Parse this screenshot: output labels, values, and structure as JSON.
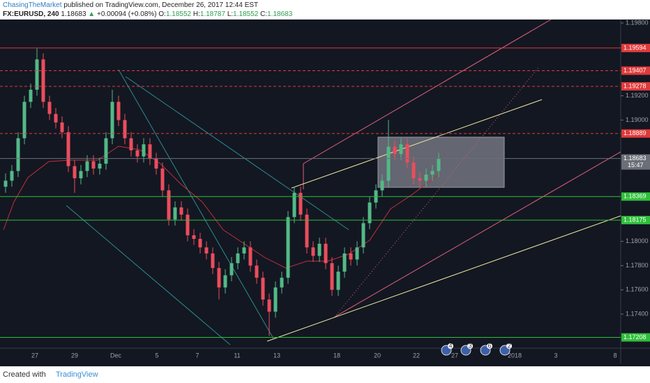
{
  "header": {
    "author": "ChasingTheMarket",
    "published": "published on TradingView.com, December 26, 2017 12:44 EST",
    "symbol": "FX:EURUSD, 240",
    "last": "1.18683",
    "arrow": "▲",
    "change": "+0.00094 (+0.08%)",
    "open_label": "O:",
    "open": "1.18552",
    "high_label": "H:",
    "high": "1.18787",
    "low_label": "L:",
    "low": "1.18552",
    "close_label": "C:",
    "close": "1.18683"
  },
  "chart_data": {
    "type": "candlestick",
    "up_color": "#53b987",
    "down_color": "#eb4d5c",
    "ylim": [
      1.17119,
      1.19829
    ],
    "yticks": [
      {
        "value": 1.198,
        "label": "1.19800"
      },
      {
        "value": 1.192,
        "label": "1.19200"
      },
      {
        "value": 1.19,
        "label": "1.19000"
      },
      {
        "value": 1.18,
        "label": "1.18000"
      },
      {
        "value": 1.178,
        "label": "1.17800"
      },
      {
        "value": 1.176,
        "label": "1.17600"
      },
      {
        "value": 1.174,
        "label": "1.17400"
      }
    ],
    "time_labels": [
      "27",
      "29",
      "Dec",
      "5",
      "7",
      "11",
      "13",
      "18",
      "20",
      "22",
      "27",
      "2018",
      "3",
      "8"
    ],
    "levels": [
      {
        "value": 1.19594,
        "color": "#e03a3a",
        "style": "solid"
      },
      {
        "value": 1.19407,
        "color": "#e03a3a",
        "style": "dashed"
      },
      {
        "value": 1.19278,
        "color": "#e03a3a",
        "style": "dashed"
      },
      {
        "value": 1.18889,
        "color": "#e03a3a",
        "style": "dashed"
      },
      {
        "value": 1.18683,
        "color": "#6b6f78",
        "style": "solid",
        "countdown": "15:47"
      },
      {
        "value": 1.18369,
        "color": "#2fbf3a",
        "style": "solid"
      },
      {
        "value": 1.18175,
        "color": "#2fbf3a",
        "style": "solid"
      },
      {
        "value": 1.17208,
        "color": "#2fbf3a",
        "style": "solid"
      }
    ],
    "events": [
      "4",
      "3",
      "6",
      "2"
    ],
    "open": [
      1.1845,
      1.185,
      1.1858,
      1.1885,
      1.1915,
      1.1925,
      1.195,
      1.1915,
      1.1905,
      1.1898,
      1.189,
      1.1862,
      1.1852,
      1.1858,
      1.1866,
      1.186,
      1.1864,
      1.1885,
      1.1915,
      1.19,
      1.1885,
      1.1875,
      1.187,
      1.188,
      1.1868,
      1.186,
      1.1842,
      1.1818,
      1.1828,
      1.1822,
      1.1805,
      1.1802,
      1.1795,
      1.179,
      1.1778,
      1.1762,
      1.1772,
      1.1782,
      1.179,
      1.1795,
      1.178,
      1.177,
      1.1752,
      1.1742,
      1.1762,
      1.177,
      1.182,
      1.184,
      1.1822,
      1.1795,
      1.1788,
      1.1798,
      1.1782,
      1.176,
      1.1775,
      1.179,
      1.1785,
      1.1795,
      1.1815,
      1.1832,
      1.1842,
      1.185,
      1.1878,
      1.1872,
      1.188,
      1.1865,
      1.1852,
      1.185,
      1.1855,
      1.1858
    ],
    "high": [
      1.1856,
      1.1863,
      1.189,
      1.192,
      1.193,
      1.1959,
      1.1955,
      1.192,
      1.191,
      1.1903,
      1.1895,
      1.1867,
      1.1863,
      1.1871,
      1.1871,
      1.1869,
      1.189,
      1.1925,
      1.192,
      1.1905,
      1.189,
      1.188,
      1.1885,
      1.1885,
      1.1873,
      1.1865,
      1.1847,
      1.1833,
      1.1833,
      1.1827,
      1.181,
      1.1807,
      1.18,
      1.1795,
      1.1783,
      1.1777,
      1.1787,
      1.1795,
      1.18,
      1.18,
      1.1785,
      1.1775,
      1.1757,
      1.1767,
      1.1775,
      1.1825,
      1.1845,
      1.1845,
      1.1827,
      1.18,
      1.1803,
      1.1803,
      1.1787,
      1.178,
      1.1795,
      1.1795,
      1.18,
      1.182,
      1.1837,
      1.1847,
      1.1855,
      1.19,
      1.1883,
      1.1885,
      1.1885,
      1.187,
      1.1857,
      1.186,
      1.1863,
      1.1873
    ],
    "low": [
      1.184,
      1.1845,
      1.1853,
      1.188,
      1.191,
      1.192,
      1.191,
      1.19,
      1.1893,
      1.1885,
      1.1857,
      1.184,
      1.1847,
      1.1853,
      1.1855,
      1.1855,
      1.1859,
      1.188,
      1.1895,
      1.188,
      1.187,
      1.1865,
      1.1865,
      1.1863,
      1.1855,
      1.1837,
      1.1813,
      1.1813,
      1.1817,
      1.18,
      1.1797,
      1.179,
      1.1785,
      1.1773,
      1.1752,
      1.1757,
      1.1767,
      1.1777,
      1.1785,
      1.1775,
      1.1765,
      1.1747,
      1.1722,
      1.1737,
      1.1757,
      1.1765,
      1.1815,
      1.1817,
      1.179,
      1.1783,
      1.1783,
      1.1777,
      1.1755,
      1.1755,
      1.177,
      1.178,
      1.178,
      1.179,
      1.181,
      1.1827,
      1.1837,
      1.1845,
      1.1867,
      1.1867,
      1.186,
      1.1847,
      1.1845,
      1.1845,
      1.185,
      1.1853
    ],
    "close": [
      1.185,
      1.1858,
      1.1885,
      1.1915,
      1.1925,
      1.195,
      1.1915,
      1.1905,
      1.1898,
      1.189,
      1.1862,
      1.1852,
      1.1858,
      1.1866,
      1.186,
      1.1864,
      1.1885,
      1.1915,
      1.19,
      1.1885,
      1.1875,
      1.187,
      1.188,
      1.1868,
      1.186,
      1.1842,
      1.1818,
      1.1828,
      1.1822,
      1.1805,
      1.1802,
      1.1795,
      1.179,
      1.1778,
      1.1762,
      1.1772,
      1.1782,
      1.179,
      1.1795,
      1.178,
      1.177,
      1.1752,
      1.1742,
      1.1762,
      1.177,
      1.182,
      1.184,
      1.1822,
      1.1795,
      1.1788,
      1.1798,
      1.1782,
      1.176,
      1.1775,
      1.179,
      1.1785,
      1.1795,
      1.1815,
      1.1832,
      1.1842,
      1.185,
      1.1878,
      1.1872,
      1.188,
      1.1865,
      1.1852,
      1.185,
      1.1855,
      1.1858,
      1.1868
    ]
  },
  "footer": {
    "created": "Created with",
    "brand": "TradingView"
  }
}
